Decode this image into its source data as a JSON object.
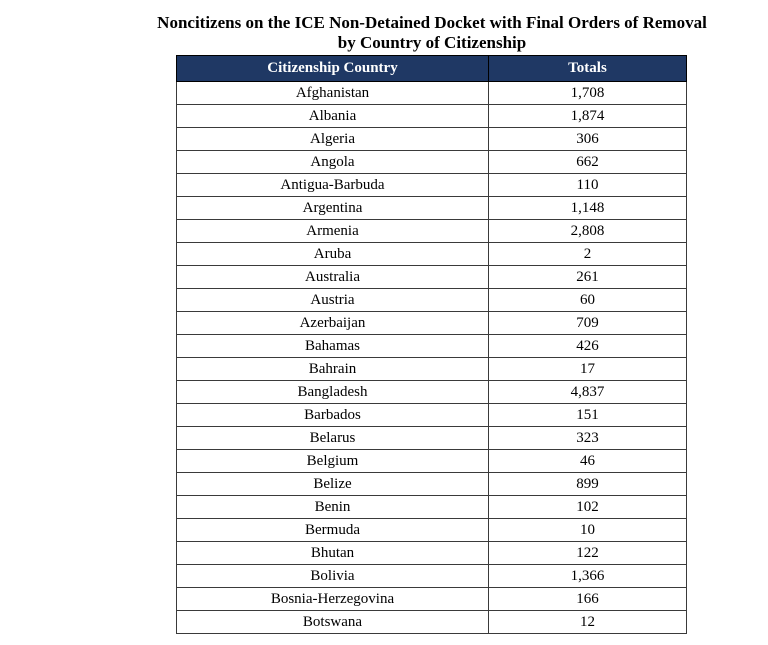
{
  "title": {
    "line1": "Noncitizens on the ICE Non-Detained Docket with Final Orders of Removal",
    "line2": "by Country of Citizenship"
  },
  "colors": {
    "header_bg": "#1f3864",
    "header_text": "#ffffff",
    "cell_border": "#3a3a3a",
    "outer_border": "#000000"
  },
  "table": {
    "headers": [
      "Citizenship Country",
      "Totals"
    ],
    "rows": [
      {
        "country": "Afghanistan",
        "total": "1,708"
      },
      {
        "country": "Albania",
        "total": "1,874"
      },
      {
        "country": "Algeria",
        "total": "306"
      },
      {
        "country": "Angola",
        "total": "662"
      },
      {
        "country": "Antigua-Barbuda",
        "total": "110"
      },
      {
        "country": "Argentina",
        "total": "1,148"
      },
      {
        "country": "Armenia",
        "total": "2,808"
      },
      {
        "country": "Aruba",
        "total": "2"
      },
      {
        "country": "Australia",
        "total": "261"
      },
      {
        "country": "Austria",
        "total": "60"
      },
      {
        "country": "Azerbaijan",
        "total": "709"
      },
      {
        "country": "Bahamas",
        "total": "426"
      },
      {
        "country": "Bahrain",
        "total": "17"
      },
      {
        "country": "Bangladesh",
        "total": "4,837"
      },
      {
        "country": "Barbados",
        "total": "151"
      },
      {
        "country": "Belarus",
        "total": "323"
      },
      {
        "country": "Belgium",
        "total": "46"
      },
      {
        "country": "Belize",
        "total": "899"
      },
      {
        "country": "Benin",
        "total": "102"
      },
      {
        "country": "Bermuda",
        "total": "10"
      },
      {
        "country": "Bhutan",
        "total": "122"
      },
      {
        "country": "Bolivia",
        "total": "1,366"
      },
      {
        "country": "Bosnia-Herzegovina",
        "total": "166"
      },
      {
        "country": "Botswana",
        "total": "12"
      }
    ]
  }
}
